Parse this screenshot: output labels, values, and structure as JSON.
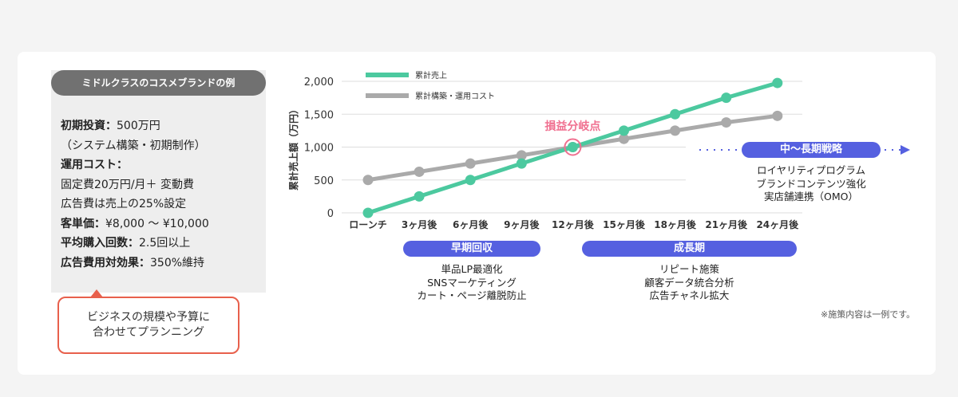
{
  "panel": {
    "title": "ミドルクラスのコスメブランドの例",
    "lines": [
      {
        "label": "初期投資：",
        "value": "500万円"
      },
      {
        "label": "",
        "value": "（システム構築・初期制作）"
      },
      {
        "label": "運用コスト：",
        "value": ""
      },
      {
        "label": "",
        "value": "固定費20万円/月＋ 変動費"
      },
      {
        "label": "",
        "value": "広告費は売上の25%設定"
      },
      {
        "label": "客単価：",
        "value": "¥8,000 ～ ¥10,000"
      },
      {
        "label": "平均購入回数：",
        "value": "2.5回以上"
      },
      {
        "label": "広告費用対効果：",
        "value": "350%維持"
      }
    ]
  },
  "callout": {
    "line1": "ビジネスの規模や予算に",
    "line2": "合わせてプランニング"
  },
  "chart_data": {
    "type": "line",
    "ylabel": "累計売上額（万円）",
    "categories": [
      "ローンチ",
      "3ヶ月後",
      "6ヶ月後",
      "9ヶ月後",
      "12ヶ月後",
      "15ヶ月後",
      "18ヶ月後",
      "21ヶ月後",
      "24ヶ月後"
    ],
    "yticks": [
      "0",
      "500",
      "1,000",
      "1,500",
      "2,000"
    ],
    "ylim": [
      0,
      2000
    ],
    "grid": true,
    "legend_position": "top-left",
    "series": [
      {
        "name": "累計売上",
        "color": "#4cc99f",
        "values": [
          0,
          250,
          500,
          750,
          1000,
          1250,
          1500,
          1750,
          1975
        ]
      },
      {
        "name": "累計構築・運用コスト",
        "color": "#aaaaaa",
        "values": [
          500,
          625,
          750,
          875,
          1000,
          1125,
          1250,
          1375,
          1475
        ]
      }
    ],
    "annotation": {
      "label": "損益分岐点",
      "category": "12ヶ月後",
      "value": 1000,
      "color": "#f07090"
    }
  },
  "phases": [
    {
      "label": "早期回収",
      "items": [
        "単品LP最適化",
        "SNSマーケティング",
        "カート・ページ離脱防止"
      ]
    },
    {
      "label": "成長期",
      "items": [
        "リピート施策",
        "顧客データ統合分析",
        "広告チャネル拡大"
      ]
    },
    {
      "label": "中～長期戦略",
      "items": [
        "ロイヤリティプログラム",
        "ブランドコンテンツ強化",
        "実店舗連携（OMO）"
      ]
    }
  ],
  "colors": {
    "phase": "#5560e0",
    "callout_border": "#e8604c"
  },
  "note": "※施策内容は一例です。"
}
